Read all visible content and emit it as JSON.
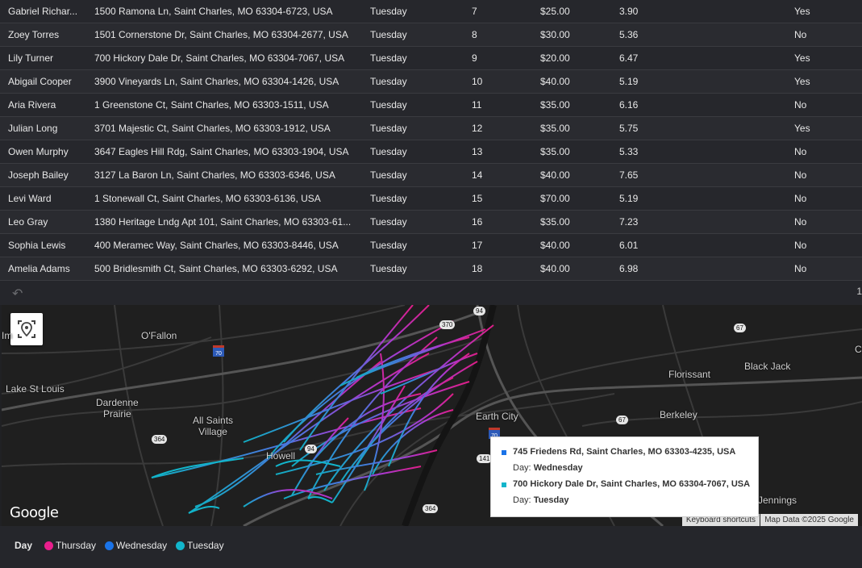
{
  "table": {
    "rows": [
      {
        "name": "Gabriel Richar...",
        "address": "1500 Ramona Ln, Saint Charles, MO 63304-6723, USA",
        "day": "Tuesday",
        "stop": "7",
        "fee": "$25.00",
        "distance": "3.90",
        "flag": "Yes"
      },
      {
        "name": "Zoey Torres",
        "address": "1501 Cornerstone Dr, Saint Charles, MO 63304-2677, USA",
        "day": "Tuesday",
        "stop": "8",
        "fee": "$30.00",
        "distance": "5.36",
        "flag": "No"
      },
      {
        "name": "Lily Turner",
        "address": "700 Hickory Dale Dr, Saint Charles, MO 63304-7067, USA",
        "day": "Tuesday",
        "stop": "9",
        "fee": "$20.00",
        "distance": "6.47",
        "flag": "Yes"
      },
      {
        "name": "Abigail Cooper",
        "address": "3900 Vineyards Ln, Saint Charles, MO 63304-1426, USA",
        "day": "Tuesday",
        "stop": "10",
        "fee": "$40.00",
        "distance": "5.19",
        "flag": "Yes"
      },
      {
        "name": "Aria Rivera",
        "address": "1 Greenstone Ct, Saint Charles, MO 63303-1511, USA",
        "day": "Tuesday",
        "stop": "11",
        "fee": "$35.00",
        "distance": "6.16",
        "flag": "No"
      },
      {
        "name": "Julian Long",
        "address": "3701 Majestic Ct, Saint Charles, MO 63303-1912, USA",
        "day": "Tuesday",
        "stop": "12",
        "fee": "$35.00",
        "distance": "5.75",
        "flag": "Yes"
      },
      {
        "name": "Owen Murphy",
        "address": "3647 Eagles Hill Rdg, Saint Charles, MO 63303-1904, USA",
        "day": "Tuesday",
        "stop": "13",
        "fee": "$35.00",
        "distance": "5.33",
        "flag": "No"
      },
      {
        "name": "Joseph Bailey",
        "address": "3127 La Baron Ln, Saint Charles, MO 63303-6346, USA",
        "day": "Tuesday",
        "stop": "14",
        "fee": "$40.00",
        "distance": "7.65",
        "flag": "No"
      },
      {
        "name": "Levi Ward",
        "address": "1 Stonewall Ct, Saint Charles, MO 63303-6136, USA",
        "day": "Tuesday",
        "stop": "15",
        "fee": "$70.00",
        "distance": "5.19",
        "flag": "No"
      },
      {
        "name": "Leo Gray",
        "address": "1380 Heritage Lndg Apt 101, Saint Charles, MO 63303-61...",
        "day": "Tuesday",
        "stop": "16",
        "fee": "$35.00",
        "distance": "7.23",
        "flag": "No"
      },
      {
        "name": "Sophia Lewis",
        "address": "400 Meramec Way, Saint Charles, MO 63303-8446, USA",
        "day": "Tuesday",
        "stop": "17",
        "fee": "$40.00",
        "distance": "6.01",
        "flag": "No"
      },
      {
        "name": "Amelia Adams",
        "address": "500 Bridlesmith Ct, Saint Charles, MO 63303-6292, USA",
        "day": "Tuesday",
        "stop": "18",
        "fee": "$40.00",
        "distance": "6.98",
        "flag": "No"
      }
    ]
  },
  "footer": {
    "undo_icon": "undo-icon",
    "pager_text": "1"
  },
  "map": {
    "places": {
      "ofallon": "O'Fallon",
      "lake": "Lake St Louis",
      "dardenne": "Dardenne\nPrairie",
      "allsaints": "All Saints\nVillage",
      "howell": "Howell",
      "earthcity": "Earth City",
      "florissant": "Florissant",
      "blackjack": "Black Jack",
      "berkeley": "Berkeley",
      "jennings": "Jennings",
      "im": "Im",
      "c": "C"
    },
    "shields": {
      "s94a": "94",
      "s370": "370",
      "s67a": "67",
      "s70a": "70",
      "s364a": "364",
      "s94b": "94",
      "s141": "141",
      "s67b": "67",
      "s364b": "364",
      "s70b": "70"
    },
    "google_logo": "Google",
    "keyboard_shortcuts": "Keyboard shortcuts",
    "map_data": "Map Data ©2025 Google",
    "tooltip": {
      "items": [
        {
          "address": "745 Friedens Rd, Saint Charles, MO 63303-4235, USA",
          "day_label": "Day: ",
          "day": "Wednesday",
          "color": "#1a73e8"
        },
        {
          "address": "700 Hickory Dale Dr, Saint Charles, MO 63304-7067, USA",
          "day_label": "Day: ",
          "day": "Tuesday",
          "color": "#12b5cb"
        }
      ]
    }
  },
  "legend": {
    "title": "Day",
    "items": [
      {
        "label": "Thursday",
        "color": "#e91e8c"
      },
      {
        "label": "Wednesday",
        "color": "#1a73e8"
      },
      {
        "label": "Tuesday",
        "color": "#12b5cb"
      }
    ]
  }
}
